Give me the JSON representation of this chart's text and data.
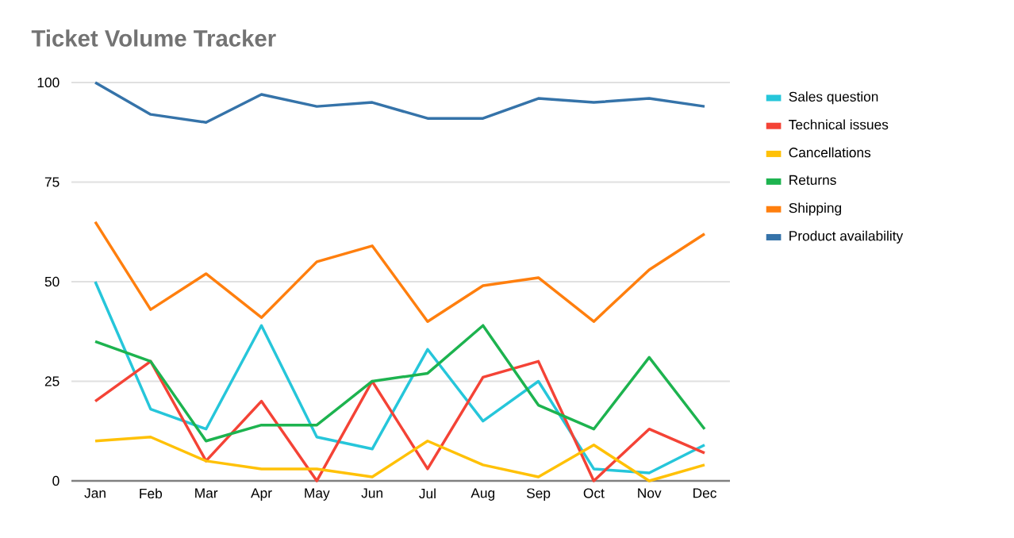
{
  "chart_data": {
    "type": "line",
    "title": "Ticket Volume Tracker",
    "categories": [
      "Jan",
      "Feb",
      "Mar",
      "Apr",
      "May",
      "Jun",
      "Jul",
      "Aug",
      "Sep",
      "Oct",
      "Nov",
      "Dec"
    ],
    "series": [
      {
        "name": "Sales question",
        "color": "#26c6da",
        "values": [
          50,
          18,
          13,
          39,
          11,
          8,
          33,
          15,
          25,
          3,
          2,
          9
        ]
      },
      {
        "name": "Technical issues",
        "color": "#f44336",
        "values": [
          20,
          30,
          5,
          20,
          0,
          25,
          3,
          26,
          30,
          0,
          13,
          7
        ]
      },
      {
        "name": "Cancellations",
        "color": "#ffc107",
        "values": [
          10,
          11,
          5,
          3,
          3,
          1,
          10,
          4,
          1,
          9,
          0,
          4
        ]
      },
      {
        "name": "Returns",
        "color": "#1db34f",
        "values": [
          35,
          30,
          10,
          14,
          14,
          25,
          27,
          39,
          19,
          13,
          31,
          13
        ]
      },
      {
        "name": "Shipping",
        "color": "#ff7f0e",
        "values": [
          65,
          43,
          52,
          41,
          55,
          59,
          40,
          49,
          51,
          40,
          53,
          62
        ]
      },
      {
        "name": "Product availability",
        "color": "#3573a9",
        "values": [
          100,
          92,
          90,
          97,
          94,
          95,
          91,
          91,
          96,
          95,
          96,
          94
        ]
      }
    ],
    "ylim": [
      0,
      100
    ],
    "yticks": [
      0,
      25,
      50,
      75,
      100
    ],
    "grid": "y",
    "legend": "right",
    "marker": "none",
    "line_style": "solid"
  }
}
